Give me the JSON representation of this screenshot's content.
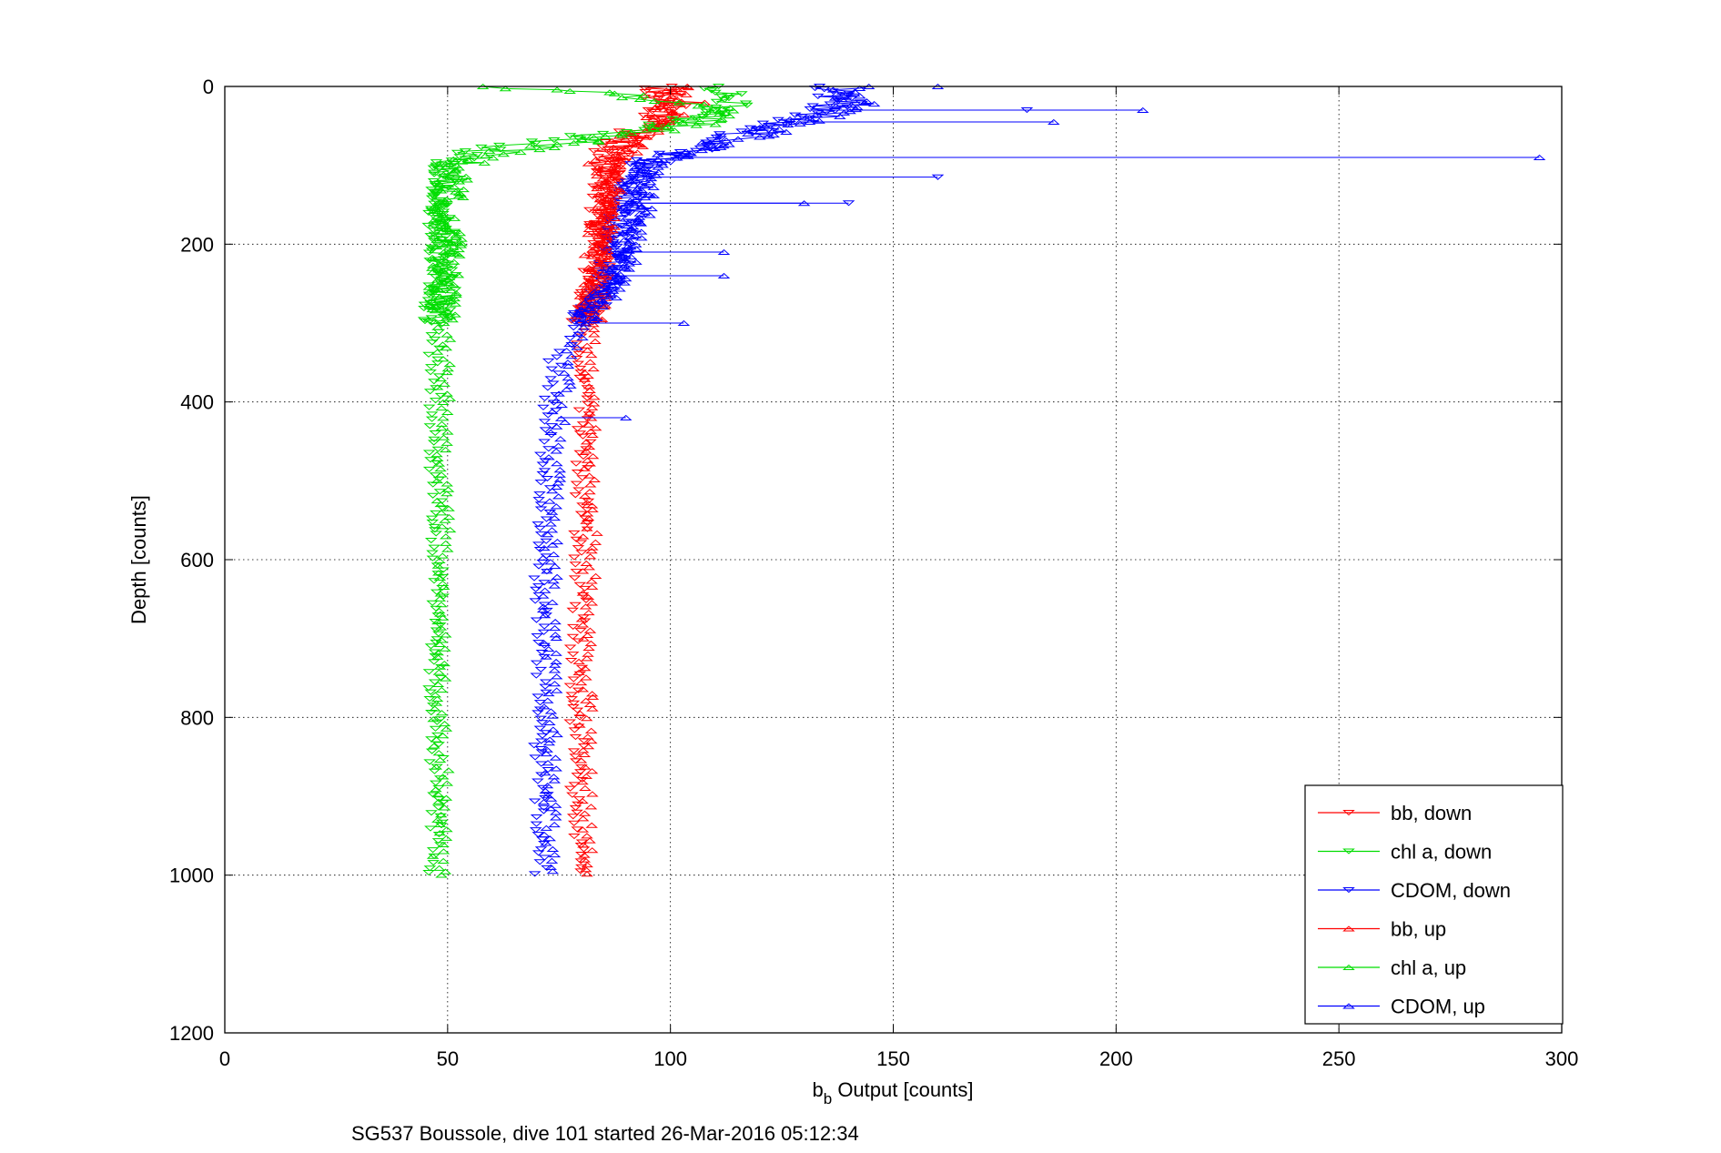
{
  "chart_data": {
    "type": "scatter",
    "title": "",
    "xlabel": {
      "main": "b",
      "sub": "b",
      "rest": " Output [counts]"
    },
    "ylabel": "Depth [counts]",
    "caption": "SG537 Boussole, dive 101 started 26-Mar-2016 05:12:34",
    "xlim": [
      0,
      300
    ],
    "ylim": [
      0,
      1200
    ],
    "y_reversed": true,
    "grid": true,
    "x_ticks": [
      "0",
      "50",
      "100",
      "150",
      "200",
      "250",
      "300"
    ],
    "y_ticks": [
      "0",
      "200",
      "400",
      "600",
      "800",
      "1000",
      "1200"
    ],
    "legend_position": "bottom-right",
    "series": [
      {
        "name": "bb, down",
        "color": "#ff0000",
        "marker": "triangle-down",
        "profile": [
          [
            0,
            97
          ],
          [
            20,
            99
          ],
          [
            40,
            98
          ],
          [
            60,
            92
          ],
          [
            80,
            88
          ],
          [
            100,
            86
          ],
          [
            150,
            85
          ],
          [
            200,
            84
          ],
          [
            250,
            83
          ],
          [
            280,
            81
          ],
          [
            320,
            80
          ],
          [
            400,
            81
          ],
          [
            500,
            80
          ],
          [
            600,
            80
          ],
          [
            700,
            79
          ],
          [
            800,
            79
          ],
          [
            900,
            79
          ],
          [
            1000,
            79
          ]
        ]
      },
      {
        "name": "chl a, down",
        "color": "#00dd00",
        "marker": "triangle-down",
        "profile": [
          [
            0,
            110
          ],
          [
            20,
            115
          ],
          [
            40,
            105
          ],
          [
            60,
            85
          ],
          [
            75,
            65
          ],
          [
            85,
            53
          ],
          [
            100,
            50
          ],
          [
            150,
            48
          ],
          [
            200,
            49
          ],
          [
            250,
            49
          ],
          [
            300,
            47
          ],
          [
            400,
            47
          ],
          [
            500,
            47
          ],
          [
            600,
            48
          ],
          [
            700,
            47
          ],
          [
            800,
            47
          ],
          [
            900,
            48
          ],
          [
            1000,
            47
          ]
        ]
      },
      {
        "name": "CDOM, down",
        "color": "#0000ff",
        "marker": "triangle-down",
        "profile": [
          [
            0,
            135
          ],
          [
            20,
            138
          ],
          [
            40,
            128
          ],
          [
            60,
            115
          ],
          [
            80,
            105
          ],
          [
            100,
            93
          ],
          [
            150,
            90
          ],
          [
            200,
            88
          ],
          [
            250,
            86
          ],
          [
            300,
            80
          ],
          [
            350,
            74
          ],
          [
            400,
            73
          ],
          [
            500,
            72
          ],
          [
            600,
            71
          ],
          [
            700,
            71
          ],
          [
            800,
            71
          ],
          [
            900,
            71
          ],
          [
            1000,
            71
          ]
        ]
      },
      {
        "name": "bb, up",
        "color": "#ff0000",
        "marker": "triangle-up",
        "profile": [
          [
            0,
            102
          ],
          [
            20,
            103
          ],
          [
            40,
            98
          ],
          [
            60,
            93
          ],
          [
            80,
            88
          ],
          [
            100,
            86
          ],
          [
            150,
            86
          ],
          [
            200,
            84
          ],
          [
            250,
            83
          ],
          [
            290,
            82
          ],
          [
            350,
            82
          ],
          [
            400,
            82
          ],
          [
            500,
            82
          ],
          [
            600,
            82
          ],
          [
            700,
            81
          ],
          [
            800,
            81
          ],
          [
            900,
            81
          ],
          [
            1000,
            81
          ]
        ]
      },
      {
        "name": "chl a, up",
        "color": "#00dd00",
        "marker": "triangle-up",
        "profile": [
          [
            0,
            58
          ],
          [
            5,
            75
          ],
          [
            10,
            90
          ],
          [
            20,
            100
          ],
          [
            30,
            112
          ],
          [
            50,
            105
          ],
          [
            70,
            80
          ],
          [
            85,
            60
          ],
          [
            100,
            52
          ],
          [
            150,
            50
          ],
          [
            200,
            50
          ],
          [
            250,
            49
          ],
          [
            300,
            49
          ],
          [
            400,
            49
          ],
          [
            500,
            49
          ],
          [
            600,
            49
          ],
          [
            700,
            49
          ],
          [
            800,
            48
          ],
          [
            900,
            49
          ],
          [
            1000,
            48
          ]
        ]
      },
      {
        "name": "CDOM, up",
        "color": "#0000ff",
        "marker": "triangle-up",
        "profile": [
          [
            0,
            140
          ],
          [
            20,
            142
          ],
          [
            40,
            132
          ],
          [
            60,
            120
          ],
          [
            80,
            105
          ],
          [
            100,
            95
          ],
          [
            150,
            93
          ],
          [
            200,
            91
          ],
          [
            250,
            87
          ],
          [
            290,
            82
          ],
          [
            300,
            80
          ],
          [
            400,
            75
          ],
          [
            500,
            74
          ],
          [
            600,
            73
          ],
          [
            700,
            73
          ],
          [
            800,
            73
          ],
          [
            900,
            73
          ],
          [
            1000,
            73
          ]
        ]
      }
    ],
    "outliers": [
      {
        "series": "CDOM, up",
        "y": 90,
        "x": 295
      },
      {
        "series": "CDOM, up",
        "y": 30,
        "x": 206
      },
      {
        "series": "CDOM, up",
        "y": 45,
        "x": 186
      },
      {
        "series": "CDOM, down",
        "y": 30,
        "x": 180
      },
      {
        "series": "CDOM, down",
        "y": 115,
        "x": 160
      },
      {
        "series": "CDOM, down",
        "y": 148,
        "x": 140
      },
      {
        "series": "CDOM, up",
        "y": 148,
        "x": 130
      },
      {
        "series": "CDOM, up",
        "y": 0,
        "x": 160
      },
      {
        "series": "CDOM, up",
        "y": 300,
        "x": 103
      },
      {
        "series": "CDOM, up",
        "y": 420,
        "x": 90
      },
      {
        "series": "CDOM, up",
        "y": 210,
        "x": 112
      },
      {
        "series": "CDOM, up",
        "y": 240,
        "x": 112
      }
    ]
  }
}
